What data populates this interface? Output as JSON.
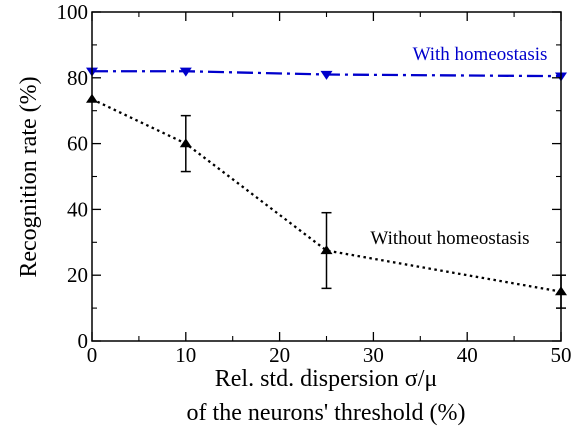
{
  "chart_data": {
    "type": "line",
    "title": "",
    "xlabel_line1": "Rel. std. dispersion σ/μ",
    "xlabel_line2": "of the neurons' threshold (%)",
    "ylabel": "Recognition rate (%)",
    "xlim": [
      0,
      50
    ],
    "ylim": [
      0,
      100
    ],
    "x_ticks": [
      0,
      10,
      20,
      30,
      40,
      50
    ],
    "y_ticks": [
      0,
      20,
      40,
      60,
      80,
      100
    ],
    "grid": false,
    "series": [
      {
        "name": "With homeostasis",
        "color": "#0000cc",
        "marker": "triangle-down",
        "line_style": "dash-dot",
        "points": [
          {
            "x": 0,
            "y": 82,
            "err": 0.5
          },
          {
            "x": 10,
            "y": 82,
            "err": 0.5
          },
          {
            "x": 25,
            "y": 81,
            "err": 0.5
          },
          {
            "x": 50,
            "y": 80.5,
            "err": 0.5
          }
        ]
      },
      {
        "name": "Without homeostasis",
        "color": "#000000",
        "marker": "triangle-up",
        "line_style": "dotted",
        "points": [
          {
            "x": 0,
            "y": 73.5,
            "err": 0
          },
          {
            "x": 10,
            "y": 60,
            "err": 8.5
          },
          {
            "x": 25,
            "y": 27.5,
            "err": 11.5
          },
          {
            "x": 50,
            "y": 15,
            "err": 5
          }
        ]
      }
    ]
  }
}
